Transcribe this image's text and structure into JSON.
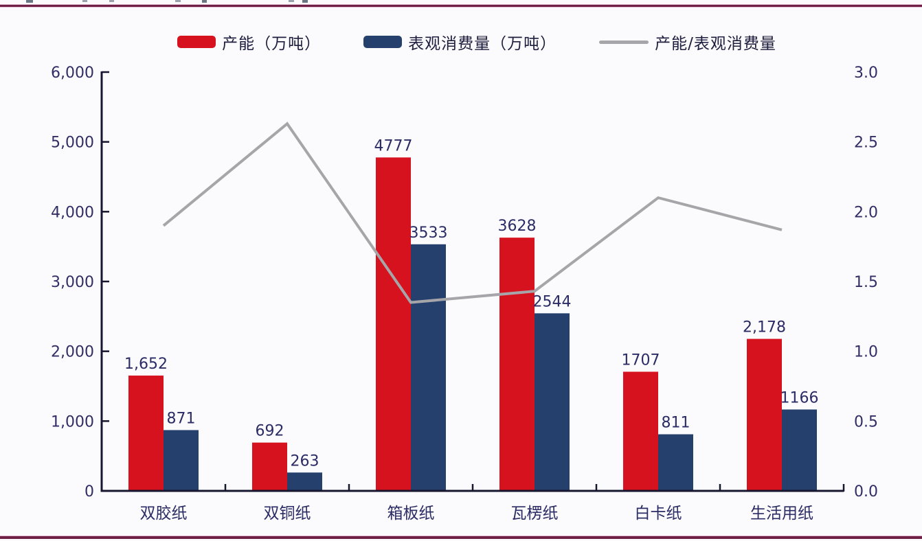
{
  "legend": {
    "items": [
      {
        "label": "产能（万吨）",
        "swatch": "bar",
        "color": "#d7121f",
        "name_en": "capacity"
      },
      {
        "label": "表观消费量（万吨）",
        "swatch": "bar",
        "color": "#25406d",
        "name_en": "apparent-consumption"
      },
      {
        "label": "产能/表观消费量",
        "swatch": "line",
        "color": "#a6a6aa",
        "name_en": "capacity-to-consumption-ratio"
      }
    ]
  },
  "chart_data": {
    "type": "bar+line combo, dual axis",
    "categories": [
      "双胶纸",
      "双铜纸",
      "箱板纸",
      "瓦楞纸",
      "白卡纸",
      "生活用纸"
    ],
    "series": [
      {
        "name": "产能（万吨）",
        "name_en": "capacity",
        "type": "bar",
        "axis": "left",
        "color": "#d7121f",
        "values": [
          1652,
          692,
          4777,
          3628,
          1707,
          2178
        ],
        "labels": [
          "1,652",
          "692",
          "4777",
          "3628",
          "1707",
          "2,178"
        ]
      },
      {
        "name": "表观消费量（万吨）",
        "name_en": "apparent-consumption",
        "type": "bar",
        "axis": "left",
        "color": "#25406d",
        "values": [
          871,
          263,
          3533,
          2544,
          811,
          1166
        ],
        "labels": [
          "871",
          "263",
          "3533",
          "2544",
          "811",
          "1166"
        ]
      },
      {
        "name": "产能/表观消费量",
        "name_en": "ratio-line",
        "type": "line",
        "axis": "right",
        "color": "#a6a6aa",
        "values": [
          1.9,
          2.63,
          1.35,
          1.43,
          2.1,
          1.87
        ]
      }
    ],
    "left_axis": {
      "min": 0,
      "max": 6000,
      "step": 1000,
      "tick_labels": [
        "0",
        "1,000",
        "2,000",
        "3,000",
        "4,000",
        "5,000",
        "6,000"
      ]
    },
    "right_axis": {
      "min": 0,
      "max": 3.0,
      "step": 0.5,
      "tick_labels": [
        "0.0",
        "0.5",
        "1.0",
        "1.5",
        "2.0",
        "2.5",
        "3.0"
      ]
    },
    "grid": false,
    "legend_position": "top-center"
  },
  "style": {
    "axis_line_color": "#16162e",
    "axis_text_color": "#312d66",
    "data_label_color": "#2b2b66",
    "category_text_color": "#2b2b66"
  }
}
